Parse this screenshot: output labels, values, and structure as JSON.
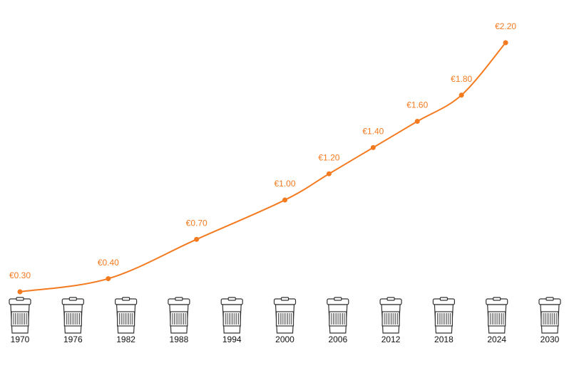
{
  "chart_data": {
    "type": "line",
    "x": [
      1970,
      1980,
      1990,
      2000,
      2005,
      2010,
      2015,
      2020,
      2025
    ],
    "values": [
      0.3,
      0.4,
      0.7,
      1.0,
      1.2,
      1.4,
      1.6,
      1.8,
      2.2
    ],
    "value_labels": [
      "€0.30",
      "€0.40",
      "€0.70",
      "€1.00",
      "€1.20",
      "€1.40",
      "€1.60",
      "€1.80",
      "€2.20"
    ],
    "color": "#f47a1f",
    "xlim": [
      1970,
      2030
    ],
    "xticks": [
      1970,
      1976,
      1982,
      1988,
      1994,
      2000,
      2006,
      2012,
      2018,
      2024,
      2030
    ]
  }
}
